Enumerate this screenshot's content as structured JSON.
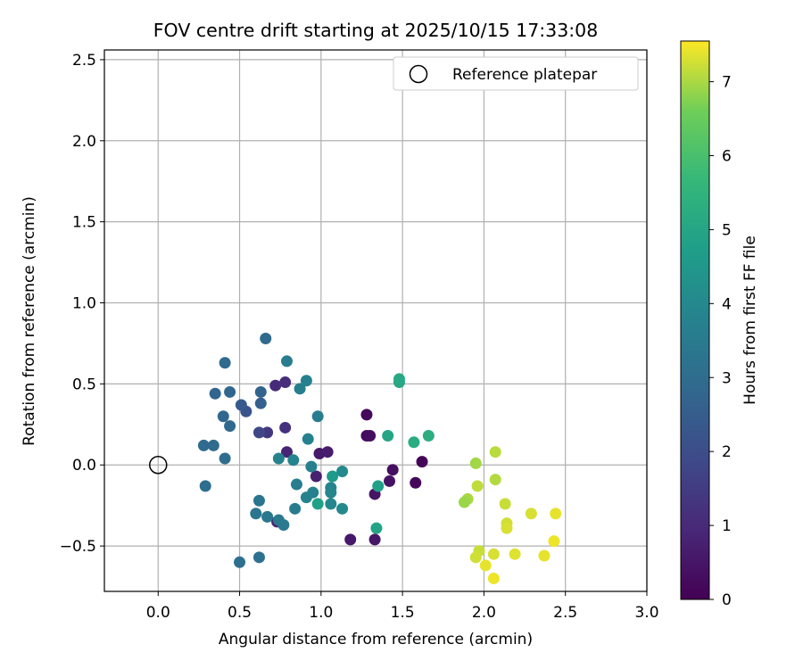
{
  "chart_data": {
    "type": "scatter",
    "title": "FOV centre drift starting at 2025/10/15 17:33:08",
    "xlabel": "Angular distance from reference (arcmin)",
    "ylabel": "Rotation from reference (arcmin)",
    "xlim": [
      -0.33,
      3.0
    ],
    "ylim": [
      -0.78,
      2.56
    ],
    "xticks": [
      0.0,
      0.5,
      1.0,
      1.5,
      2.0,
      2.5,
      3.0
    ],
    "xtick_labels": [
      "0.0",
      "0.5",
      "1.0",
      "1.5",
      "2.0",
      "2.5",
      "3.0"
    ],
    "yticks": [
      -0.5,
      0.0,
      0.5,
      1.0,
      1.5,
      2.0,
      2.5
    ],
    "ytick_labels": [
      "−0.5",
      "0.0",
      "0.5",
      "1.0",
      "1.5",
      "2.0",
      "2.5"
    ],
    "grid": true,
    "colormap": "viridis",
    "colorbar": {
      "label": "Hours from first FF file",
      "range": [
        0,
        7.55
      ],
      "ticks": [
        0,
        1,
        2,
        3,
        4,
        5,
        6,
        7
      ],
      "tick_labels": [
        "0",
        "1",
        "2",
        "3",
        "4",
        "5",
        "6",
        "7"
      ]
    },
    "legend": {
      "position": "top-right",
      "label": "Reference platepar"
    },
    "reference_point": {
      "x": 0.0,
      "y": 0.0,
      "label": "Reference platepar"
    },
    "points": [
      {
        "x": 1.62,
        "y": 0.02,
        "t": 0.1
      },
      {
        "x": 1.58,
        "y": -0.11,
        "t": 0.15
      },
      {
        "x": 1.28,
        "y": 0.31,
        "t": 0.2
      },
      {
        "x": 1.28,
        "y": 0.18,
        "t": 0.25
      },
      {
        "x": 1.3,
        "y": 0.18,
        "t": 0.3
      },
      {
        "x": 1.44,
        "y": -0.03,
        "t": 0.35
      },
      {
        "x": 1.42,
        "y": -0.1,
        "t": 0.4
      },
      {
        "x": 1.33,
        "y": -0.18,
        "t": 0.45
      },
      {
        "x": 1.33,
        "y": -0.46,
        "t": 0.5
      },
      {
        "x": 1.18,
        "y": -0.46,
        "t": 0.55
      },
      {
        "x": 0.99,
        "y": 0.07,
        "t": 0.6
      },
      {
        "x": 1.04,
        "y": 0.08,
        "t": 0.65
      },
      {
        "x": 0.97,
        "y": -0.07,
        "t": 0.75
      },
      {
        "x": 0.79,
        "y": 0.08,
        "t": 0.85
      },
      {
        "x": 0.73,
        "y": -0.35,
        "t": 0.9
      },
      {
        "x": 0.72,
        "y": 0.49,
        "t": 1.0
      },
      {
        "x": 0.78,
        "y": 0.51,
        "t": 1.1
      },
      {
        "x": 0.78,
        "y": 0.23,
        "t": 1.2
      },
      {
        "x": 0.67,
        "y": 0.2,
        "t": 1.4
      },
      {
        "x": 0.62,
        "y": 0.2,
        "t": 1.8
      },
      {
        "x": 0.54,
        "y": 0.33,
        "t": 2.2
      },
      {
        "x": 0.51,
        "y": 0.37,
        "t": 2.4
      },
      {
        "x": 0.63,
        "y": 0.38,
        "t": 2.6
      },
      {
        "x": 0.63,
        "y": 0.45,
        "t": 2.7
      },
      {
        "x": 0.44,
        "y": 0.45,
        "t": 2.8
      },
      {
        "x": 0.35,
        "y": 0.44,
        "t": 2.75
      },
      {
        "x": 0.41,
        "y": 0.63,
        "t": 2.9
      },
      {
        "x": 0.66,
        "y": 0.78,
        "t": 2.95
      },
      {
        "x": 0.4,
        "y": 0.3,
        "t": 2.8
      },
      {
        "x": 0.44,
        "y": 0.24,
        "t": 2.85
      },
      {
        "x": 0.28,
        "y": 0.12,
        "t": 2.9
      },
      {
        "x": 0.34,
        "y": 0.12,
        "t": 2.95
      },
      {
        "x": 0.41,
        "y": 0.04,
        "t": 3.0
      },
      {
        "x": 0.29,
        "y": -0.13,
        "t": 3.05
      },
      {
        "x": 0.5,
        "y": -0.6,
        "t": 3.1
      },
      {
        "x": 0.62,
        "y": -0.57,
        "t": 3.15
      },
      {
        "x": 0.62,
        "y": -0.22,
        "t": 3.3
      },
      {
        "x": 0.6,
        "y": -0.3,
        "t": 3.35
      },
      {
        "x": 0.67,
        "y": -0.32,
        "t": 3.4
      },
      {
        "x": 0.74,
        "y": -0.34,
        "t": 3.45
      },
      {
        "x": 0.77,
        "y": -0.37,
        "t": 3.5
      },
      {
        "x": 0.84,
        "y": -0.27,
        "t": 3.55
      },
      {
        "x": 0.85,
        "y": -0.12,
        "t": 3.6
      },
      {
        "x": 0.79,
        "y": 0.64,
        "t": 3.6
      },
      {
        "x": 0.87,
        "y": 0.47,
        "t": 3.65
      },
      {
        "x": 0.91,
        "y": 0.52,
        "t": 3.7
      },
      {
        "x": 0.98,
        "y": 0.3,
        "t": 3.6
      },
      {
        "x": 0.92,
        "y": 0.16,
        "t": 3.75
      },
      {
        "x": 0.74,
        "y": 0.04,
        "t": 3.8
      },
      {
        "x": 0.83,
        "y": 0.03,
        "t": 3.85
      },
      {
        "x": 0.94,
        "y": -0.01,
        "t": 3.7
      },
      {
        "x": 0.95,
        "y": -0.17,
        "t": 3.75
      },
      {
        "x": 0.91,
        "y": -0.2,
        "t": 3.8
      },
      {
        "x": 1.06,
        "y": -0.14,
        "t": 3.85
      },
      {
        "x": 1.06,
        "y": -0.17,
        "t": 3.9
      },
      {
        "x": 1.06,
        "y": -0.24,
        "t": 3.95
      },
      {
        "x": 1.13,
        "y": -0.27,
        "t": 4.0
      },
      {
        "x": 1.13,
        "y": -0.04,
        "t": 4.05
      },
      {
        "x": 1.07,
        "y": -0.07,
        "t": 4.6
      },
      {
        "x": 0.98,
        "y": -0.24,
        "t": 4.8
      },
      {
        "x": 1.35,
        "y": -0.13,
        "t": 4.85
      },
      {
        "x": 1.34,
        "y": -0.39,
        "t": 4.9
      },
      {
        "x": 1.41,
        "y": 0.18,
        "t": 5.0
      },
      {
        "x": 1.48,
        "y": 0.51,
        "t": 5.05
      },
      {
        "x": 1.48,
        "y": 0.53,
        "t": 5.1
      },
      {
        "x": 1.57,
        "y": 0.14,
        "t": 5.25
      },
      {
        "x": 1.66,
        "y": 0.18,
        "t": 5.3
      },
      {
        "x": 1.95,
        "y": 0.01,
        "t": 6.95
      },
      {
        "x": 2.07,
        "y": 0.08,
        "t": 7.1
      },
      {
        "x": 2.07,
        "y": -0.09,
        "t": 7.05
      },
      {
        "x": 1.96,
        "y": -0.13,
        "t": 7.15
      },
      {
        "x": 1.9,
        "y": -0.21,
        "t": 7.0
      },
      {
        "x": 1.88,
        "y": -0.23,
        "t": 6.9
      },
      {
        "x": 2.13,
        "y": -0.24,
        "t": 7.2
      },
      {
        "x": 2.29,
        "y": -0.3,
        "t": 7.3
      },
      {
        "x": 2.44,
        "y": -0.3,
        "t": 7.4
      },
      {
        "x": 2.14,
        "y": -0.36,
        "t": 7.25
      },
      {
        "x": 2.14,
        "y": -0.39,
        "t": 7.3
      },
      {
        "x": 2.43,
        "y": -0.47,
        "t": 7.45
      },
      {
        "x": 1.97,
        "y": -0.53,
        "t": 7.2
      },
      {
        "x": 1.95,
        "y": -0.57,
        "t": 7.25
      },
      {
        "x": 2.06,
        "y": -0.55,
        "t": 7.3
      },
      {
        "x": 2.19,
        "y": -0.55,
        "t": 7.35
      },
      {
        "x": 2.37,
        "y": -0.56,
        "t": 7.4
      },
      {
        "x": 2.01,
        "y": -0.62,
        "t": 7.4
      },
      {
        "x": 2.06,
        "y": -0.7,
        "t": 7.45
      }
    ]
  }
}
